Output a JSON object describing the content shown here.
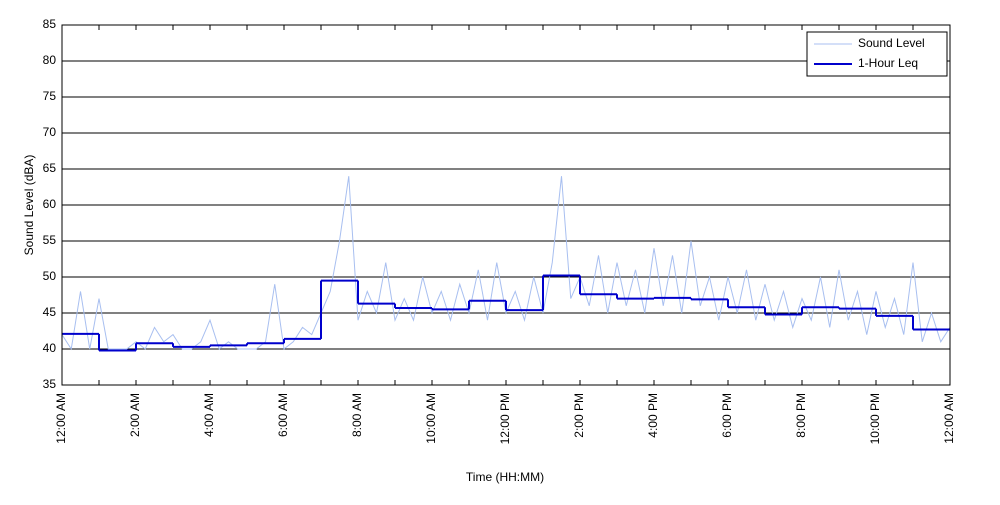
{
  "chart_data": {
    "type": "line",
    "x_label": "Time (HH:MM)",
    "y_label": "Sound Level (dBA)",
    "xlim": [
      0,
      24
    ],
    "ylim": [
      35,
      85
    ],
    "yticks": [
      35,
      40,
      45,
      50,
      55,
      60,
      65,
      70,
      75,
      80,
      85
    ],
    "xticks": [
      {
        "value": 0,
        "label": "12:00 AM"
      },
      {
        "value": 1,
        "label": null
      },
      {
        "value": 2,
        "label": "2:00 AM"
      },
      {
        "value": 3,
        "label": null
      },
      {
        "value": 4,
        "label": "4:00 AM"
      },
      {
        "value": 5,
        "label": null
      },
      {
        "value": 6,
        "label": "6:00 AM"
      },
      {
        "value": 7,
        "label": null
      },
      {
        "value": 8,
        "label": "8:00 AM"
      },
      {
        "value": 9,
        "label": null
      },
      {
        "value": 10,
        "label": "10:00 AM"
      },
      {
        "value": 11,
        "label": null
      },
      {
        "value": 12,
        "label": "12:00 PM"
      },
      {
        "value": 13,
        "label": null
      },
      {
        "value": 14,
        "label": "2:00 PM"
      },
      {
        "value": 15,
        "label": null
      },
      {
        "value": 16,
        "label": "4:00 PM"
      },
      {
        "value": 17,
        "label": null
      },
      {
        "value": 18,
        "label": "6:00 PM"
      },
      {
        "value": 19,
        "label": null
      },
      {
        "value": 20,
        "label": "8:00 PM"
      },
      {
        "value": 21,
        "label": null
      },
      {
        "value": 22,
        "label": "10:00 PM"
      },
      {
        "value": 23,
        "label": null
      },
      {
        "value": 24,
        "label": "12:00 AM"
      }
    ],
    "grid": true,
    "legend": "upper right",
    "series": [
      {
        "name": "Sound Level",
        "color": "#a8bff0",
        "step": false,
        "x": [
          0,
          0.25,
          0.5,
          0.75,
          1,
          1.25,
          1.5,
          1.75,
          2,
          2.25,
          2.5,
          2.75,
          3,
          3.25,
          3.5,
          3.75,
          4,
          4.25,
          4.5,
          4.75,
          5,
          5.25,
          5.5,
          5.75,
          6,
          6.25,
          6.5,
          6.75,
          7,
          7.25,
          7.5,
          7.75,
          8,
          8.25,
          8.5,
          8.75,
          9,
          9.25,
          9.5,
          9.75,
          10,
          10.25,
          10.5,
          10.75,
          11,
          11.25,
          11.5,
          11.75,
          12,
          12.25,
          12.5,
          12.75,
          13,
          13.25,
          13.5,
          13.75,
          14,
          14.25,
          14.5,
          14.75,
          15,
          15.25,
          15.5,
          15.75,
          16,
          16.25,
          16.5,
          16.75,
          17,
          17.25,
          17.5,
          17.75,
          18,
          18.25,
          18.5,
          18.75,
          19,
          19.25,
          19.5,
          19.75,
          20,
          20.25,
          20.5,
          20.75,
          21,
          21.25,
          21.5,
          21.75,
          22,
          22.25,
          22.5,
          22.75,
          23,
          23.25,
          23.5,
          23.75,
          24
        ],
        "values": [
          42,
          40,
          48,
          40,
          47,
          40,
          40,
          40,
          41,
          40,
          43,
          41,
          42,
          40,
          40,
          41,
          44,
          40,
          41,
          40,
          40,
          40,
          41,
          49,
          40,
          41,
          43,
          42,
          45,
          48,
          55,
          64,
          44,
          48,
          45,
          52,
          44,
          47,
          44,
          50,
          45,
          48,
          44,
          49,
          45,
          51,
          44,
          52,
          45,
          48,
          44,
          50,
          45,
          52,
          64,
          47,
          50,
          46,
          53,
          45,
          52,
          46,
          51,
          45,
          54,
          46,
          53,
          45,
          55,
          46,
          50,
          44,
          50,
          45,
          51,
          44,
          49,
          44,
          48,
          43,
          47,
          44,
          50,
          43,
          51,
          44,
          48,
          42,
          48,
          43,
          47,
          42,
          52,
          41,
          45,
          41,
          43
        ]
      },
      {
        "name": "1-Hour Leq",
        "color": "#0000cc",
        "step": true,
        "x": [
          0,
          1,
          2,
          3,
          4,
          5,
          6,
          7,
          8,
          9,
          10,
          11,
          12,
          13,
          14,
          15,
          16,
          17,
          18,
          19,
          20,
          21,
          22,
          23
        ],
        "values": [
          42.1,
          39.8,
          40.8,
          40.3,
          40.5,
          40.8,
          41.4,
          49.5,
          46.3,
          45.7,
          45.5,
          46.7,
          45.4,
          50.2,
          47.6,
          47.0,
          47.1,
          46.9,
          45.8,
          44.8,
          45.8,
          45.6,
          44.6,
          42.7
        ]
      }
    ]
  }
}
